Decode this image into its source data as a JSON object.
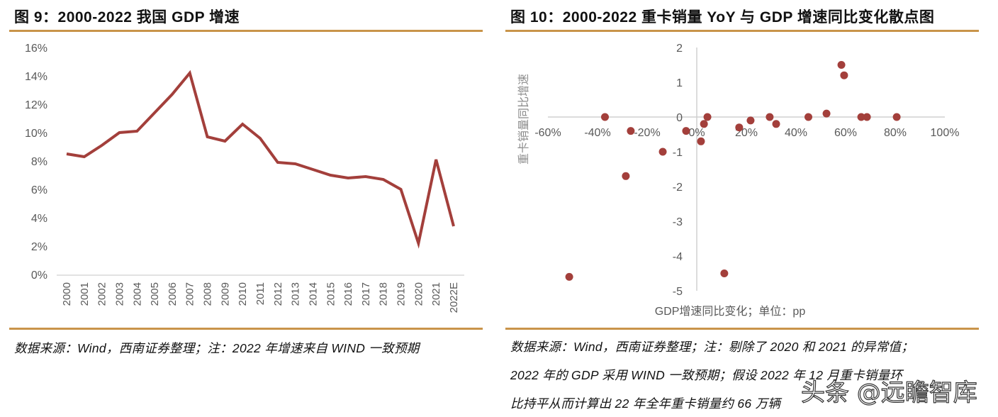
{
  "left": {
    "title": "图 9：2000-2022 我国 GDP 增速",
    "source": "数据来源：Wind，西南证券整理；注：2022 年增速来自 WIND 一致预期"
  },
  "right": {
    "title": "图 10：2000-2022 重卡销量 YoY 与 GDP 增速同比变化散点图",
    "source_lines": [
      "数据来源：Wind，西南证券整理；注：剔除了 2020 和 2021 的异常值；",
      "2022 年的 GDP 采用 WIND 一致预期；假设 2022 年 12 月重卡销量环",
      "比持平从而计算出 22 年全年重卡销量约 66 万辆"
    ]
  },
  "watermark": "头条 @远瞻智库",
  "colors": {
    "series": "#a33f3b",
    "rule": "#c9944a",
    "axis": "#d0d0d0",
    "tick": "#595959"
  },
  "chart_data": [
    {
      "type": "line",
      "title": "2000-2022 我国 GDP 增速",
      "xlabel": "",
      "ylabel": "",
      "categories": [
        "2000",
        "2001",
        "2002",
        "2003",
        "2004",
        "2005",
        "2006",
        "2007",
        "2008",
        "2009",
        "2010",
        "2011",
        "2012",
        "2013",
        "2014",
        "2015",
        "2016",
        "2017",
        "2018",
        "2019",
        "2020",
        "2021",
        "2022E"
      ],
      "series": [
        {
          "name": "GDP增速",
          "values": [
            8.5,
            8.3,
            9.1,
            10.0,
            10.1,
            11.4,
            12.7,
            14.2,
            9.7,
            9.4,
            10.6,
            9.6,
            7.9,
            7.8,
            7.4,
            7.0,
            6.8,
            6.9,
            6.7,
            6.0,
            2.2,
            8.1,
            3.4
          ]
        }
      ],
      "ylim": [
        0,
        16
      ],
      "yticks": [
        "0%",
        "2%",
        "4%",
        "6%",
        "8%",
        "10%",
        "12%",
        "14%",
        "16%"
      ],
      "ytick_values": [
        0,
        2,
        4,
        6,
        8,
        10,
        12,
        14,
        16
      ],
      "grid": false,
      "legend": "none"
    },
    {
      "type": "scatter",
      "title": "2000-2022 重卡销量 YoY 与 GDP 增速同比变化散点图",
      "xlabel": "GDP增速同比变化；单位：pp",
      "ylabel": "重卡销量同比增速",
      "xlim": [
        -60,
        100
      ],
      "ylim": [
        -5,
        2
      ],
      "xticks": [
        "-60%",
        "-40%",
        "-20%",
        "0%",
        "20%",
        "40%",
        "60%",
        "80%",
        "100%"
      ],
      "xtick_values": [
        -60,
        -40,
        -20,
        0,
        20,
        40,
        60,
        80,
        100
      ],
      "yticks": [
        "2",
        "1",
        "0",
        "-1",
        "-2",
        "-3",
        "-4",
        "-5"
      ],
      "ytick_values": [
        2,
        1,
        0,
        -1,
        -2,
        -3,
        -4,
        -5
      ],
      "grid": false,
      "legend": "none",
      "points": [
        {
          "x": -37,
          "y": 0
        },
        {
          "x": -26.6,
          "y": -0.4
        },
        {
          "x": -28.6,
          "y": -1.7
        },
        {
          "x": -13.7,
          "y": -1.0
        },
        {
          "x": -4.3,
          "y": -0.4
        },
        {
          "x": 1.7,
          "y": -0.7
        },
        {
          "x": 2.9,
          "y": -0.2
        },
        {
          "x": 4.3,
          "y": 0
        },
        {
          "x": -51.4,
          "y": -4.6
        },
        {
          "x": 11.1,
          "y": -4.5
        },
        {
          "x": 17.1,
          "y": -0.3
        },
        {
          "x": 21.7,
          "y": -0.1
        },
        {
          "x": 29.4,
          "y": 0
        },
        {
          "x": 32.0,
          "y": -0.2
        },
        {
          "x": 45.0,
          "y": 0
        },
        {
          "x": 52.3,
          "y": 0.1
        },
        {
          "x": 58.3,
          "y": 1.5
        },
        {
          "x": 59.4,
          "y": 1.2
        },
        {
          "x": 66.3,
          "y": 0
        },
        {
          "x": 68.6,
          "y": 0
        },
        {
          "x": 80.6,
          "y": 0
        }
      ]
    }
  ]
}
